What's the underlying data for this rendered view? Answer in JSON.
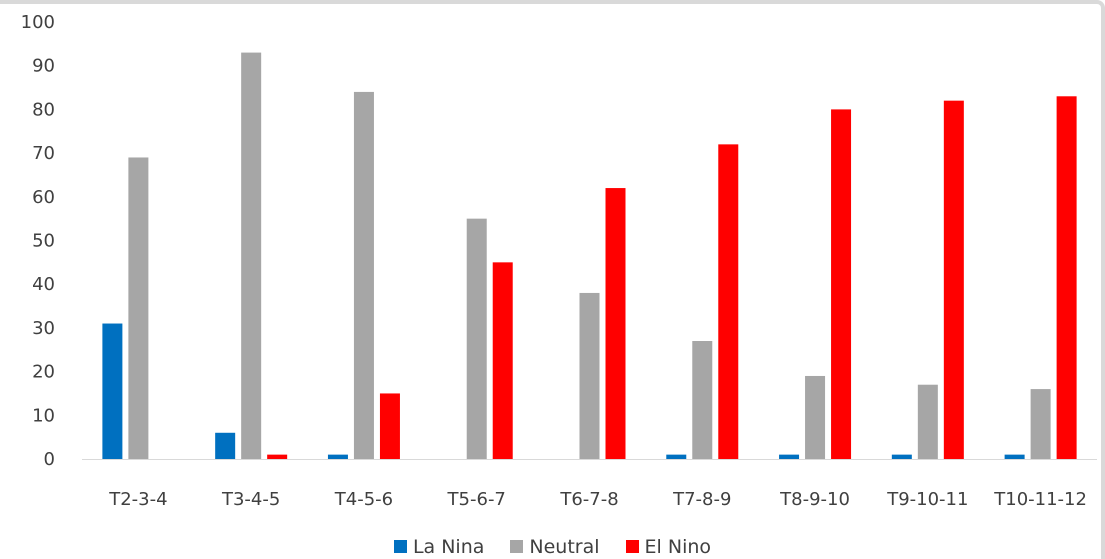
{
  "chart_data": {
    "type": "bar",
    "title": "",
    "xlabel": "",
    "ylabel": "",
    "ylim": [
      0,
      100
    ],
    "yticks": [
      0,
      10,
      20,
      30,
      40,
      50,
      60,
      70,
      80,
      90,
      100
    ],
    "grid": false,
    "legend": "bottom",
    "categories": [
      "T2-3-4",
      "T3-4-5",
      "T4-5-6",
      "T5-6-7",
      "T6-7-8",
      "T7-8-9",
      "T8-9-10",
      "T9-10-11",
      "T10-11-12"
    ],
    "series": [
      {
        "name": "La Nina",
        "color": "#0070c0",
        "values": [
          31,
          6,
          1,
          0,
          0,
          1,
          1,
          1,
          1
        ]
      },
      {
        "name": "Neutral",
        "color": "#a6a6a6",
        "values": [
          69,
          93,
          84,
          55,
          38,
          27,
          19,
          17,
          16
        ]
      },
      {
        "name": "El Nino",
        "color": "#ff0000",
        "values": [
          0,
          1,
          15,
          45,
          62,
          72,
          80,
          82,
          83
        ]
      }
    ]
  }
}
